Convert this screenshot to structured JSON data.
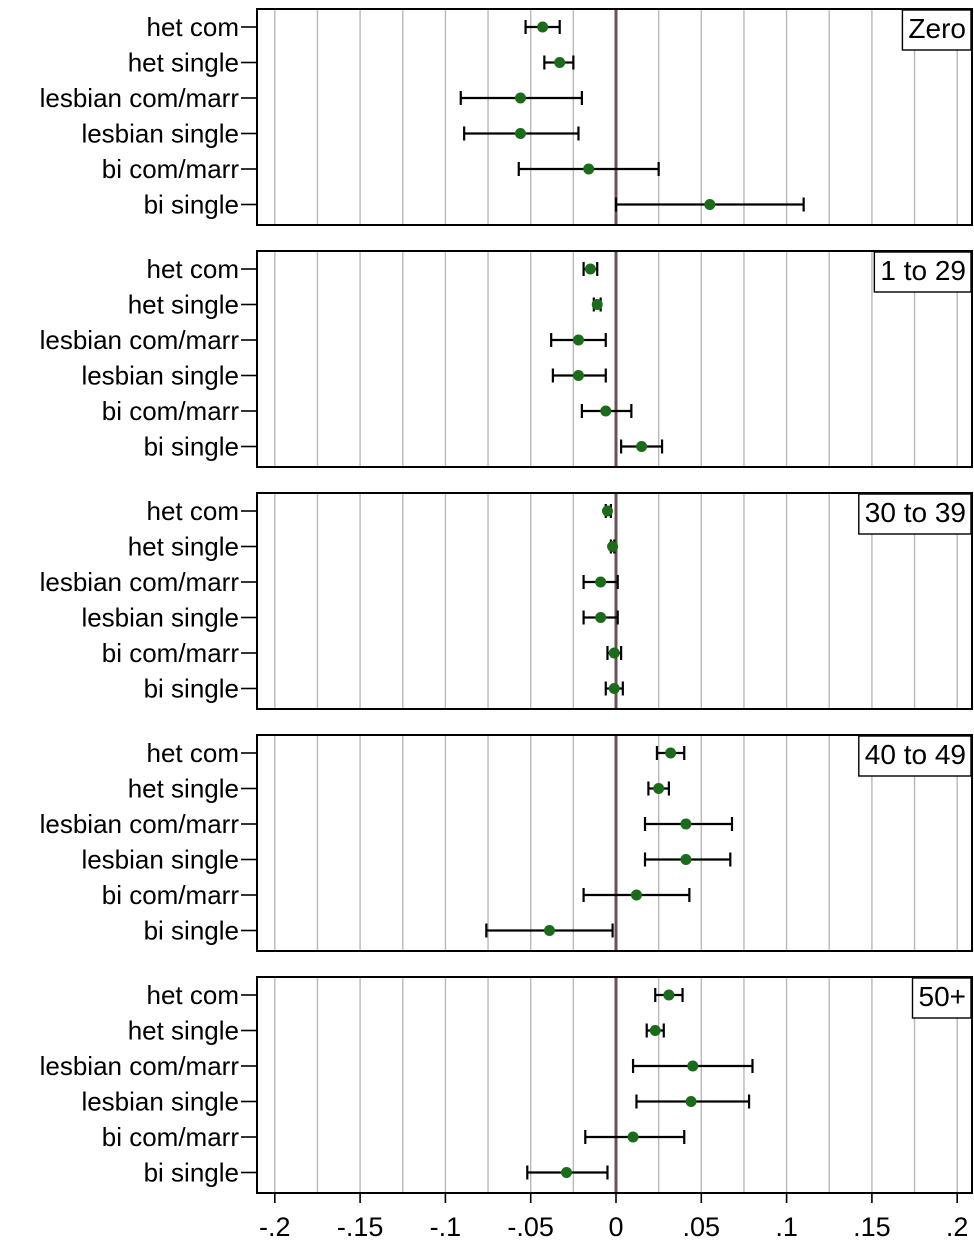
{
  "chart_data": {
    "type": "scatter",
    "subtype": "coefficient-plot-with-confidence-intervals",
    "categories": [
      "het com",
      "het single",
      "lesbian com/marr",
      "lesbian single",
      "bi com/marr",
      "bi single"
    ],
    "x_ticks": [
      -0.2,
      -0.15,
      -0.1,
      -0.05,
      0,
      0.05,
      0.1,
      0.15,
      0.2
    ],
    "x_tick_labels": [
      "-.2",
      "-.15",
      "-.1",
      "-.05",
      "0",
      ".05",
      ".1",
      ".15",
      ".2"
    ],
    "xlim": [
      -0.205,
      0.205
    ],
    "grid": true,
    "reference_line": 0,
    "colors": {
      "point": "#1a6b1a",
      "errorbar": "#000000",
      "grid": "#b8b8b8",
      "reference": "#6b5055",
      "frame": "#000000"
    },
    "panels": [
      {
        "label": "Zero",
        "estimates": [
          -0.043,
          -0.033,
          -0.056,
          -0.056,
          -0.016,
          0.055
        ],
        "ci_low": [
          -0.053,
          -0.042,
          -0.091,
          -0.089,
          -0.057,
          0.0
        ],
        "ci_high": [
          -0.033,
          -0.025,
          -0.02,
          -0.022,
          0.025,
          0.11
        ]
      },
      {
        "label": "1 to 29",
        "estimates": [
          -0.015,
          -0.011,
          -0.022,
          -0.022,
          -0.006,
          0.015
        ],
        "ci_low": [
          -0.019,
          -0.013,
          -0.038,
          -0.037,
          -0.02,
          0.003
        ],
        "ci_high": [
          -0.011,
          -0.009,
          -0.006,
          -0.006,
          0.009,
          0.027
        ]
      },
      {
        "label": "30 to 39",
        "estimates": [
          -0.005,
          -0.002,
          -0.009,
          -0.009,
          -0.001,
          -0.001
        ],
        "ci_low": [
          -0.006,
          -0.003,
          -0.019,
          -0.019,
          -0.005,
          -0.006
        ],
        "ci_high": [
          -0.003,
          -0.001,
          0.001,
          0.001,
          0.003,
          0.004
        ]
      },
      {
        "label": "40 to 49",
        "estimates": [
          0.032,
          0.025,
          0.041,
          0.041,
          0.012,
          -0.039
        ],
        "ci_low": [
          0.024,
          0.019,
          0.017,
          0.017,
          -0.019,
          -0.076
        ],
        "ci_high": [
          0.04,
          0.031,
          0.068,
          0.067,
          0.043,
          -0.002
        ]
      },
      {
        "label": "50+",
        "estimates": [
          0.031,
          0.023,
          0.045,
          0.044,
          0.01,
          -0.029
        ],
        "ci_low": [
          0.023,
          0.018,
          0.01,
          0.012,
          -0.018,
          -0.052
        ],
        "ci_high": [
          0.039,
          0.028,
          0.08,
          0.078,
          0.04,
          -0.005
        ]
      }
    ]
  }
}
